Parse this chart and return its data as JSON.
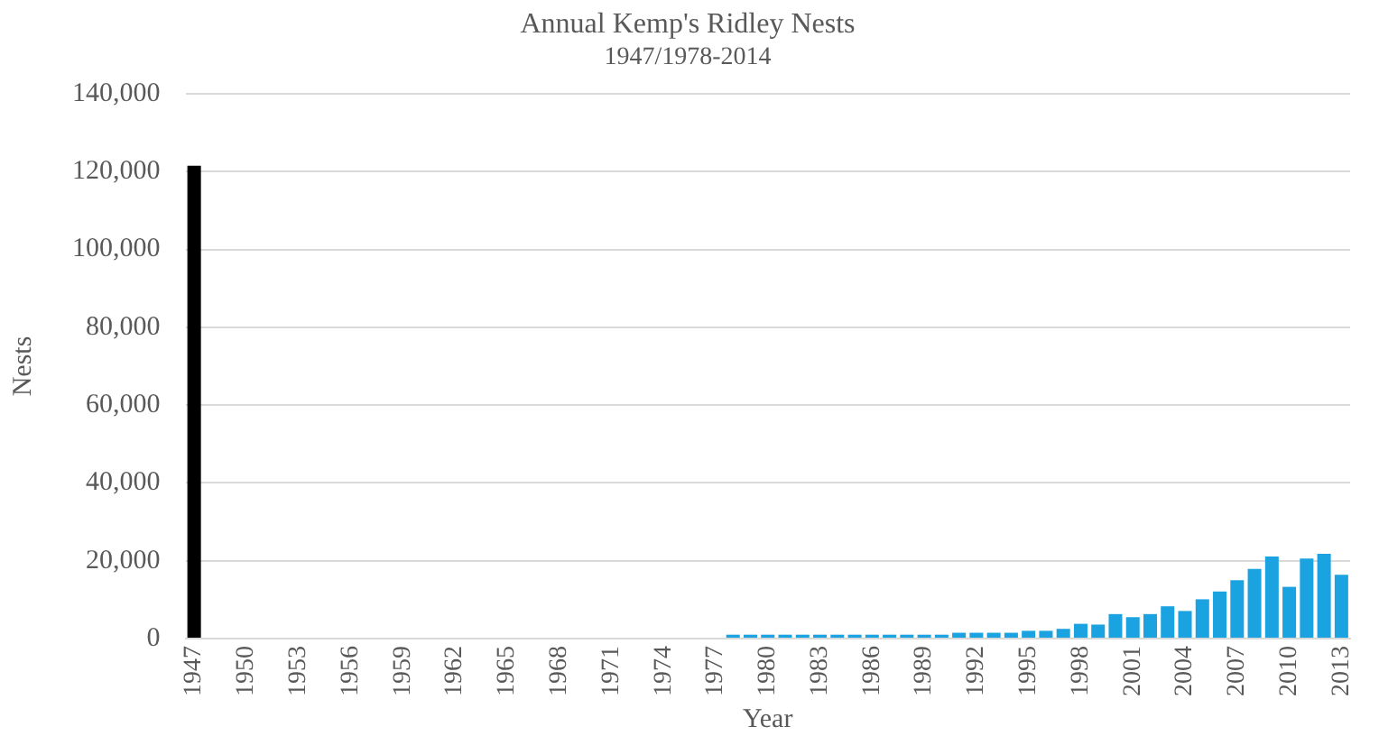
{
  "chart_data": {
    "type": "bar",
    "title": "Annual Kemp's Ridley Nests",
    "subtitle": "1947/1978-2014",
    "xlabel": "Year",
    "ylabel": "Nests",
    "categories": [
      "1947",
      null,
      null,
      "1950",
      null,
      null,
      "1953",
      null,
      null,
      "1956",
      null,
      null,
      "1959",
      null,
      null,
      "1962",
      null,
      null,
      "1965",
      null,
      null,
      "1968",
      null,
      null,
      "1971",
      null,
      null,
      "1974",
      null,
      null,
      "1977",
      null,
      null,
      "1980",
      null,
      null,
      "1983",
      null,
      null,
      "1986",
      null,
      null,
      "1989",
      null,
      null,
      "1992",
      null,
      null,
      "1995",
      null,
      null,
      "1998",
      null,
      null,
      "2001",
      null,
      null,
      "2004",
      null,
      null,
      "2007",
      null,
      null,
      "2010",
      null,
      null,
      "2013"
    ],
    "values": [
      121500,
      0,
      0,
      0,
      0,
      0,
      0,
      0,
      0,
      0,
      0,
      0,
      0,
      0,
      0,
      0,
      0,
      0,
      0,
      0,
      0,
      0,
      0,
      0,
      0,
      0,
      0,
      0,
      0,
      0,
      0,
      1000,
      1000,
      1000,
      1000,
      1000,
      1000,
      1000,
      1000,
      1000,
      1000,
      1000,
      1000,
      1000,
      1500,
      1500,
      1500,
      1500,
      2000,
      2000,
      2500,
      3800,
      3600,
      6300,
      5500,
      6300,
      8300,
      7100,
      10100,
      12100,
      15000,
      17900,
      21100,
      13300,
      20600,
      21800,
      16400
    ],
    "colors": [
      "#000000",
      "#1aa3e0",
      "#1aa3e0",
      "#1aa3e0",
      "#1aa3e0",
      "#1aa3e0",
      "#1aa3e0",
      "#1aa3e0",
      "#1aa3e0",
      "#1aa3e0",
      "#1aa3e0",
      "#1aa3e0",
      "#1aa3e0",
      "#1aa3e0",
      "#1aa3e0",
      "#1aa3e0",
      "#1aa3e0",
      "#1aa3e0",
      "#1aa3e0",
      "#1aa3e0",
      "#1aa3e0",
      "#1aa3e0",
      "#1aa3e0",
      "#1aa3e0",
      "#1aa3e0",
      "#1aa3e0",
      "#1aa3e0",
      "#1aa3e0",
      "#1aa3e0",
      "#1aa3e0",
      "#1aa3e0",
      "#1aa3e0",
      "#1aa3e0",
      "#1aa3e0",
      "#1aa3e0",
      "#1aa3e0",
      "#1aa3e0",
      "#1aa3e0",
      "#1aa3e0",
      "#1aa3e0",
      "#1aa3e0",
      "#1aa3e0",
      "#1aa3e0",
      "#1aa3e0",
      "#1aa3e0",
      "#1aa3e0",
      "#1aa3e0",
      "#1aa3e0",
      "#1aa3e0",
      "#1aa3e0",
      "#1aa3e0",
      "#1aa3e0",
      "#1aa3e0",
      "#1aa3e0",
      "#1aa3e0",
      "#1aa3e0",
      "#1aa3e0",
      "#1aa3e0",
      "#1aa3e0",
      "#1aa3e0",
      "#1aa3e0",
      "#1aa3e0",
      "#1aa3e0",
      "#1aa3e0",
      "#1aa3e0",
      "#1aa3e0",
      "#1aa3e0"
    ],
    "ylim": [
      0,
      140000
    ],
    "yticks": [
      {
        "value": 0,
        "label": "0"
      },
      {
        "value": 20000,
        "label": "20,000"
      },
      {
        "value": 40000,
        "label": "40,000"
      },
      {
        "value": 60000,
        "label": "60,000"
      },
      {
        "value": 80000,
        "label": "80,000"
      },
      {
        "value": 100000,
        "label": "100,000"
      },
      {
        "value": 120000,
        "label": "120,000"
      },
      {
        "value": 140000,
        "label": "140,000"
      }
    ],
    "grid": "y",
    "legend": false
  }
}
